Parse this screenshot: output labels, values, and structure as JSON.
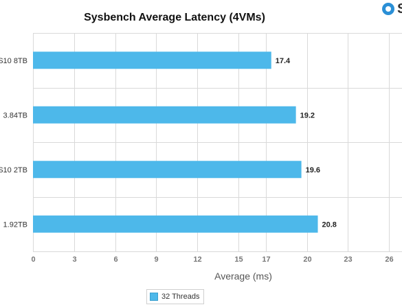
{
  "chart_data": {
    "type": "bar",
    "orientation": "horizontal",
    "title": "Sysbench Average Latency (4VMs)",
    "xlabel": "Average (ms)",
    "ylabel": "",
    "categories": [
      "S10 8TB",
      "3.84TB",
      "S10 2TB",
      "1.92TB"
    ],
    "series": [
      {
        "name": "32 Threads",
        "values": [
          17.4,
          19.2,
          19.6,
          20.8
        ],
        "color": "#4db8ea"
      }
    ],
    "xlim": [
      0,
      28
    ],
    "xticks": [
      0,
      3,
      6,
      9,
      12,
      15,
      17,
      20,
      23,
      26
    ],
    "grid": true,
    "legend_position": "bottom-center"
  },
  "logo": {
    "text": "S"
  }
}
